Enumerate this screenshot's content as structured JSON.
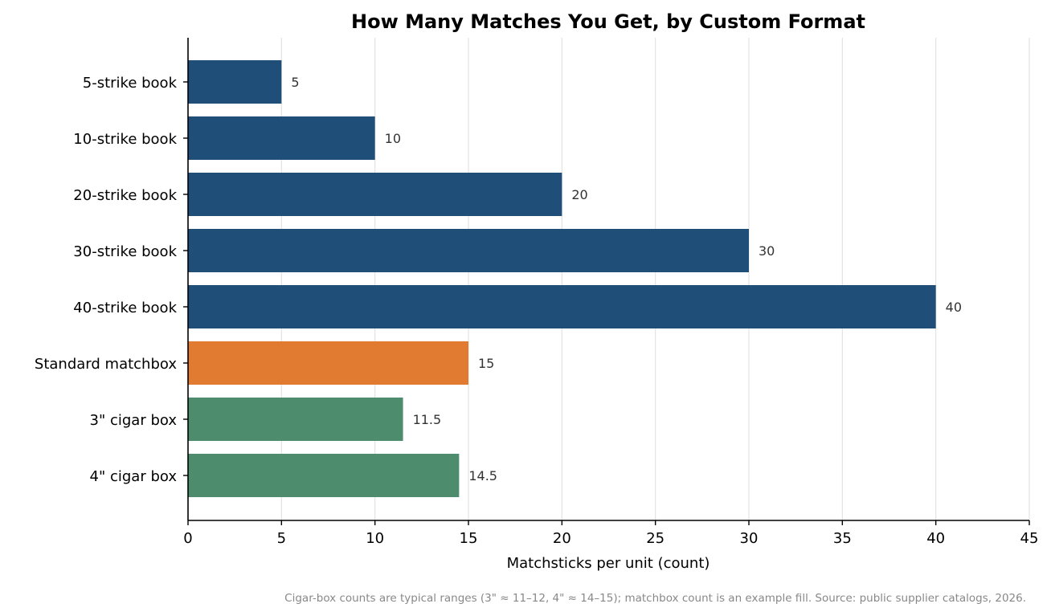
{
  "chart_data": {
    "type": "bar",
    "orientation": "horizontal",
    "title": "How Many Matches You Get, by Custom Format",
    "xlabel": "Matchsticks per unit (count)",
    "ylabel": "",
    "xlim": [
      0,
      45
    ],
    "xticks": [
      0,
      5,
      10,
      15,
      20,
      25,
      30,
      35,
      40,
      45
    ],
    "grid": "vertical",
    "categories": [
      "5-strike book",
      "10-strike book",
      "20-strike book",
      "30-strike book",
      "40-strike book",
      "Standard matchbox",
      "3\" cigar box",
      "4\" cigar box"
    ],
    "values": [
      5,
      10,
      20,
      30,
      40,
      15,
      11.5,
      14.5
    ],
    "value_labels": [
      "5",
      "10",
      "20",
      "30",
      "40",
      "15",
      "11.5",
      "14.5"
    ],
    "bar_colors": [
      "#1f4e79",
      "#1f4e79",
      "#1f4e79",
      "#1f4e79",
      "#1f4e79",
      "#e07b31",
      "#4d8c6d",
      "#4d8c6d"
    ],
    "footnote": "Cigar-box counts are typical ranges (3\" ≈ 11–12, 4\" ≈ 14–15); matchbox count is an example fill. Source: public supplier catalogs, 2026."
  }
}
